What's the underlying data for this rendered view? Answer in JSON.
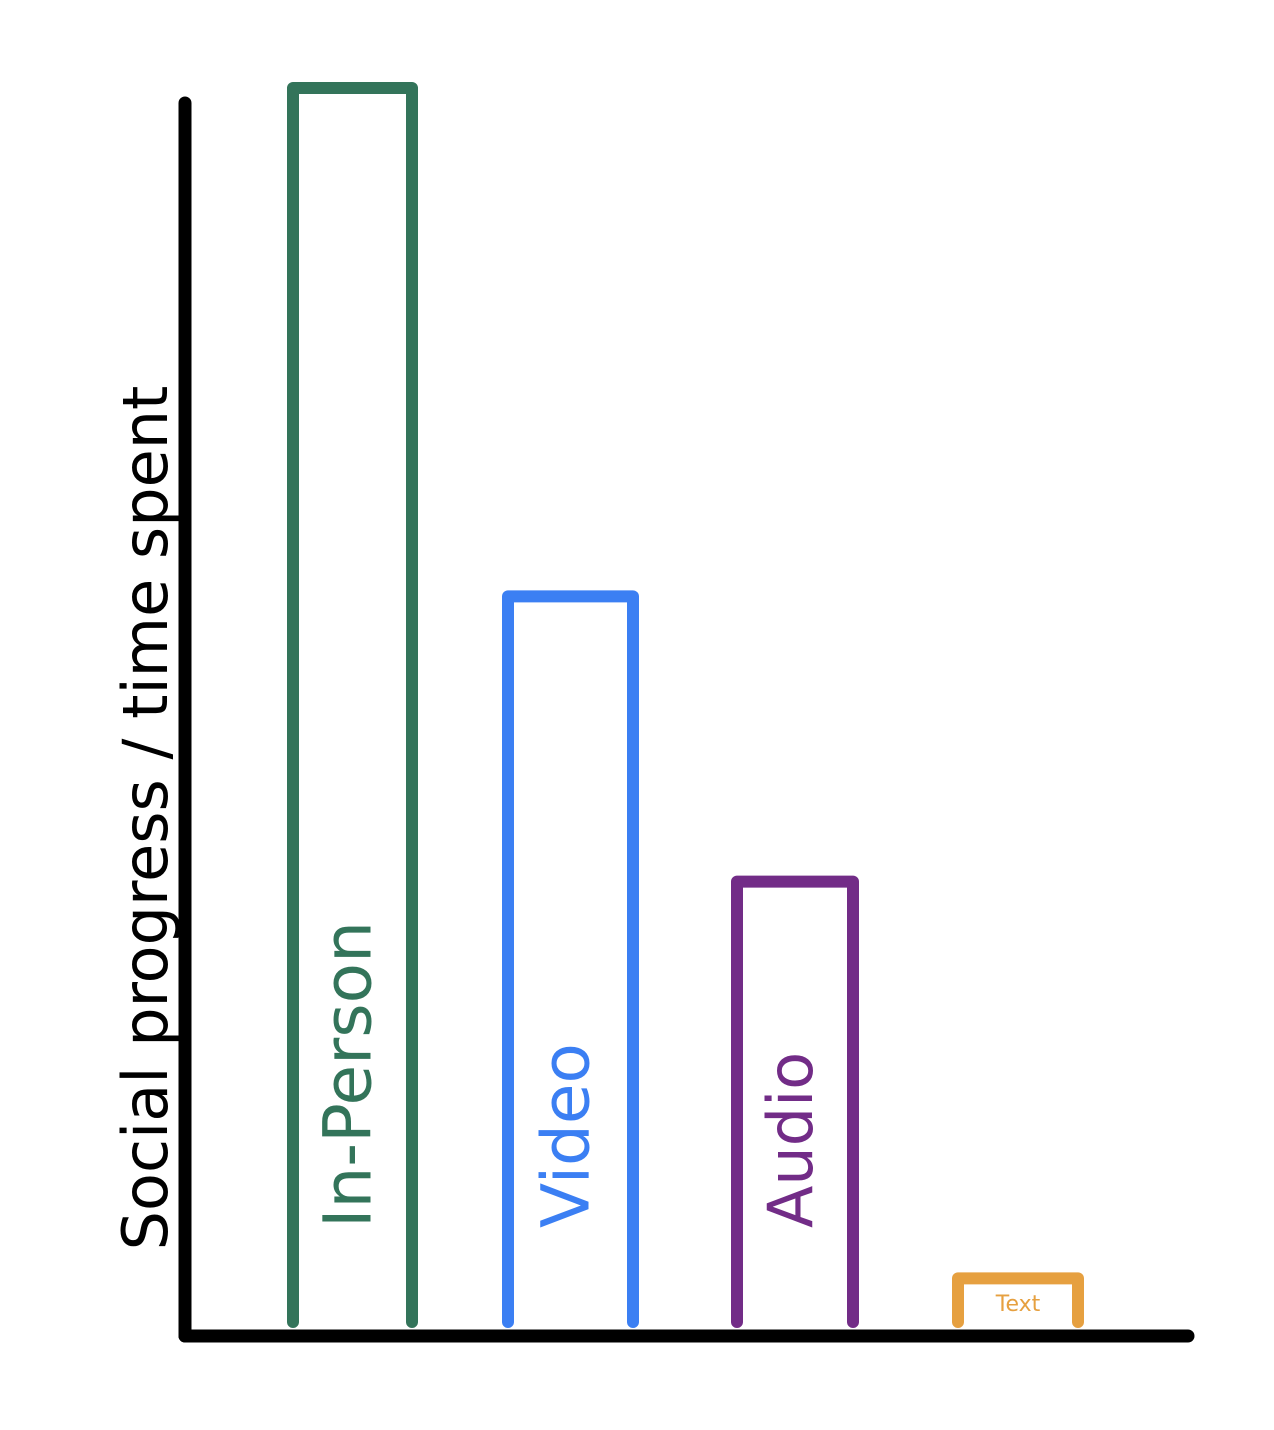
{
  "chart_data": {
    "type": "bar",
    "categories": [
      "In-Person",
      "Video",
      "Audio",
      "Text"
    ],
    "values": [
      100,
      59,
      36,
      4
    ],
    "colors": [
      "#33745a",
      "#3b7ff3",
      "#722c87",
      "#e6a040"
    ],
    "ylabel": "Social progress / time spent",
    "xlabel": "",
    "ylim": [
      0,
      100
    ],
    "grid": false,
    "legend": "none"
  }
}
